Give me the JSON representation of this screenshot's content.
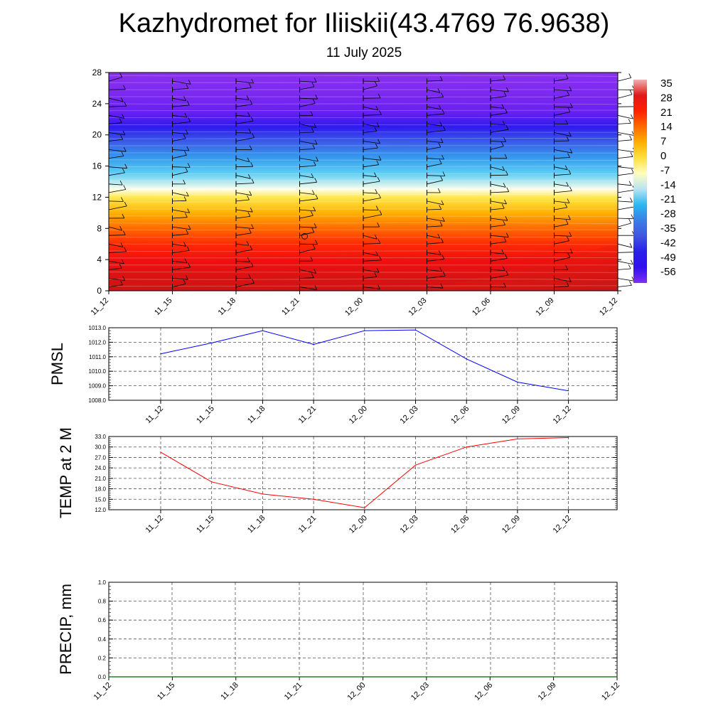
{
  "header": {
    "title": "Kazhydromet for Iliiskii(43.4769 76.9638)",
    "subtitle": "11 July 2025"
  },
  "chart_data": [
    {
      "type": "heatmap",
      "name": "temperature-cross-section",
      "x_labels": [
        "11_12",
        "11_15",
        "11_18",
        "11_21",
        "12_00",
        "12_03",
        "12_06",
        "12_09",
        "12_12"
      ],
      "y_ticks": [
        0,
        4,
        8,
        12,
        16,
        20,
        24,
        28
      ],
      "ylim": [
        0,
        28
      ],
      "colorbar_labels": [
        "35",
        "28",
        "21",
        "14",
        "7",
        "0",
        "-7",
        "-14",
        "-21",
        "-28",
        "-35",
        "-42",
        "-49",
        "-56"
      ],
      "colorbar_colors": [
        "#f0b0b0",
        "#e01818",
        "#ff2000",
        "#ff6a00",
        "#ffae00",
        "#ffe040",
        "#fffdc0",
        "#b8e4f5",
        "#2ab8f0",
        "#3a7fe8",
        "#4055e0",
        "#2a20e8",
        "#3010f0",
        "#8030f0"
      ],
      "temperature_profile_by_height": [
        {
          "h": 0,
          "t": 32
        },
        {
          "h": 2,
          "t": 30
        },
        {
          "h": 4,
          "t": 27
        },
        {
          "h": 6,
          "t": 22
        },
        {
          "h": 8,
          "t": 15
        },
        {
          "h": 10,
          "t": 7
        },
        {
          "h": 12,
          "t": -2
        },
        {
          "h": 13,
          "t": -12
        },
        {
          "h": 15,
          "t": -22
        },
        {
          "h": 17,
          "t": -32
        },
        {
          "h": 19,
          "t": -40
        },
        {
          "h": 21,
          "t": -50
        },
        {
          "h": 23,
          "t": -56
        },
        {
          "h": 25,
          "t": -58
        },
        {
          "h": 28,
          "t": -60
        }
      ]
    },
    {
      "type": "line",
      "name": "pmsl",
      "ylabel": "PMSL",
      "x": [
        "11_12",
        "11_15",
        "11_18",
        "11_21",
        "12_00",
        "12_03",
        "12_06",
        "12_09",
        "12_12"
      ],
      "series": [
        {
          "values": [
            1011.2,
            1011.95,
            1012.8,
            1011.85,
            1012.8,
            1012.85,
            1010.85,
            1009.25,
            1008.65
          ],
          "color": "#0000ff"
        }
      ],
      "ylim": [
        1008.0,
        1013.0
      ],
      "y_ticks": [
        "1008.0",
        "1009.0",
        "1010.0",
        "1011.0",
        "1012.0",
        "1013.0"
      ]
    },
    {
      "type": "line",
      "name": "temp-2m",
      "ylabel": "TEMP at 2 M",
      "x": [
        "11_12",
        "11_15",
        "11_18",
        "11_21",
        "12_00",
        "12_03",
        "12_06",
        "12_09",
        "12_12"
      ],
      "series": [
        {
          "values": [
            28.5,
            20.0,
            16.5,
            15.0,
            12.6,
            24.8,
            30.0,
            32.3,
            32.7
          ],
          "color": "#ff0000"
        }
      ],
      "ylim": [
        12.0,
        33.0
      ],
      "y_ticks": [
        "12.0",
        "15.0",
        "18.0",
        "21.0",
        "24.0",
        "27.0",
        "30.0",
        "33.0"
      ]
    },
    {
      "type": "line",
      "name": "precip",
      "ylabel": "PRECIP, mm",
      "x": [
        "11_12",
        "11_15",
        "11_18",
        "11_21",
        "12_00",
        "12_03",
        "12_06",
        "12_09",
        "12_12"
      ],
      "series": [
        {
          "values": [
            0,
            0,
            0,
            0,
            0,
            0,
            0,
            0,
            0
          ],
          "color": "#006400"
        }
      ],
      "ylim": [
        0.0,
        1.0
      ],
      "y_ticks": [
        "0.0",
        "0.2",
        "0.4",
        "0.6",
        "0.8",
        "1.0"
      ]
    }
  ]
}
